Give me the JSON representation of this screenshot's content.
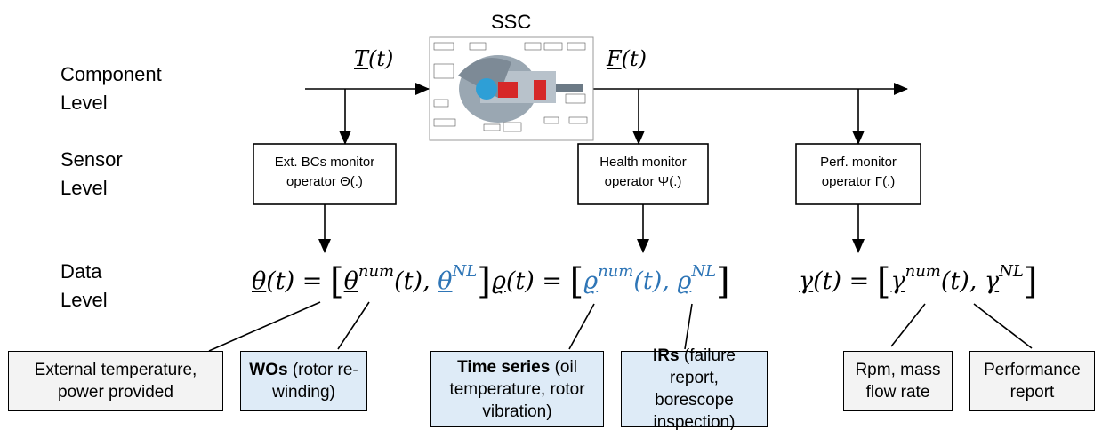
{
  "title": "SSC",
  "signals": {
    "input": {
      "symbol": "T",
      "arg": "(t)"
    },
    "output": {
      "symbol": "F",
      "arg": "(t)"
    }
  },
  "levels": [
    [
      "Component",
      "Level"
    ],
    [
      "Sensor",
      "Level"
    ],
    [
      "Data",
      "Level"
    ]
  ],
  "monitors": [
    {
      "lines": [
        "Ext. BCs monitor",
        "operator"
      ],
      "symbol": "Θ",
      "arg": "(.)"
    },
    {
      "lines": [
        "Health monitor",
        "operator"
      ],
      "symbol": "Ψ",
      "arg": "(.)"
    },
    {
      "lines": [
        "Perf. monitor",
        "operator"
      ],
      "symbol": "Γ",
      "arg": "(.)"
    }
  ],
  "equations": [
    {
      "lhs": "θ",
      "lhs_arg": "(t)",
      "eq": "=",
      "open": "[",
      "t1": "θ",
      "t1_sup": "num",
      "t1_arg": "(t),",
      "t2": "θ",
      "t2_sup": "NL",
      "close": "]"
    },
    {
      "lhs": "ϱ",
      "lhs_arg": "(t)",
      "eq": "=",
      "open": "[",
      "t1": "ϱ",
      "t1_sup": "num",
      "t1_arg": "(t),",
      "t2": "ϱ",
      "t2_sup": "NL",
      "close": "]"
    },
    {
      "lhs": "γ",
      "lhs_arg": "(t)",
      "eq": "=",
      "open": "[",
      "t1": "γ",
      "t1_sup": "num",
      "t1_arg": "(t),",
      "t2": "γ",
      "t2_sup": "NL",
      "close": "]"
    }
  ],
  "boxes": [
    {
      "text": "External temperature, power provided"
    },
    {
      "bold": "WOs",
      "text": " (rotor re-winding)"
    },
    {
      "bold": "Time series",
      "text": " (oil temperature, rotor vibration)"
    },
    {
      "bold": "IRs",
      "text": " (failure report, borescope inspection)"
    },
    {
      "text": "Rpm, mass flow rate"
    },
    {
      "text": "Performance report"
    }
  ]
}
